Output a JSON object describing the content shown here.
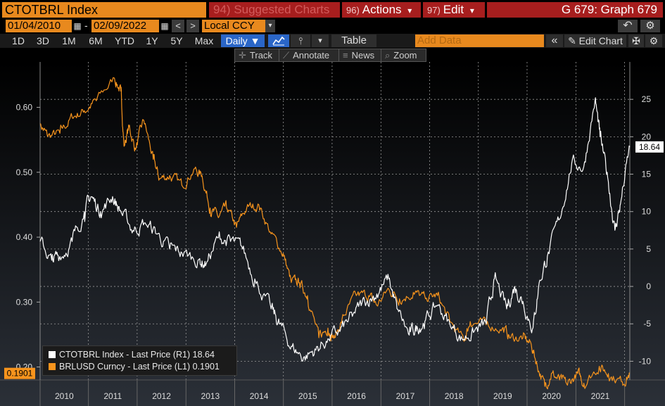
{
  "header": {
    "security": "CTOTBRL Index",
    "suggested": {
      "num": "94)",
      "label": "Suggested Charts"
    },
    "actions": {
      "num": "96)",
      "label": "Actions",
      "caret": "▾"
    },
    "edit": {
      "num": "97)",
      "label": "Edit",
      "caret": "▾"
    },
    "graph_id": "G 679: Graph 679"
  },
  "range": {
    "start_date": "01/04/2010",
    "end_date": "02/09/2022",
    "dash": "-",
    "prev": "<",
    "next": ">",
    "currency": "Local CCY",
    "currency_caret": "▾",
    "undo": "↶",
    "settings": "⚙"
  },
  "periods": [
    "1D",
    "3D",
    "1M",
    "6M",
    "YTD",
    "1Y",
    "5Y",
    "Max"
  ],
  "frequency": "Daily ▼",
  "toolbar": {
    "line_icon": "📈",
    "bar_icon": "⫯",
    "more": "▾",
    "table": "Table",
    "add_data_placeholder": "Add Data",
    "collapse": "«",
    "edit_chart": "✎ Edit Chart",
    "config": "✠"
  },
  "subtoolbar": [
    {
      "icon": "✛",
      "label": "Track"
    },
    {
      "icon": "⟋",
      "label": "Annotate"
    },
    {
      "icon": "≡",
      "label": "News"
    },
    {
      "icon": "⌕",
      "label": "Zoom"
    }
  ],
  "legend": [
    {
      "color": "#ffffff",
      "label": "CTOTBRL Index - Last Price (R1) 18.64"
    },
    {
      "color": "#f7941d",
      "label": "BRLUSD Curncy - Last Price (L1) 0.1901"
    }
  ],
  "chart_data": {
    "type": "line",
    "x_axis": {
      "type": "date",
      "range": [
        "2010-01-04",
        "2022-02-09"
      ],
      "ticks": [
        "2010",
        "2011",
        "2012",
        "2013",
        "2014",
        "2015",
        "2016",
        "2017",
        "2018",
        "2019",
        "2020",
        "2021"
      ]
    },
    "y_left": {
      "range": [
        0.18,
        0.67
      ],
      "ticks": [
        0.2,
        0.3,
        0.4,
        0.5,
        0.6
      ],
      "tick_labels": [
        "0.20",
        "0.30",
        "0.40",
        "0.50",
        "0.60"
      ]
    },
    "y_right": {
      "range": [
        -12.5,
        30
      ],
      "ticks": [
        -10,
        -5,
        0,
        5,
        10,
        15,
        20,
        25
      ],
      "tick_labels": [
        "-10",
        "-5",
        "0",
        "5",
        "10",
        "15",
        "20",
        "25"
      ]
    },
    "last_labels": {
      "left": "0.1901",
      "right": "18.64"
    },
    "grid": true,
    "series": [
      {
        "name": "BRLUSD Curncy - Last Price (L1)",
        "axis": "left",
        "color": "#f7941d",
        "points": [
          [
            "2010-01-04",
            0.575
          ],
          [
            "2010-03-01",
            0.555
          ],
          [
            "2010-06-01",
            0.56
          ],
          [
            "2010-09-01",
            0.585
          ],
          [
            "2010-12-01",
            0.595
          ],
          [
            "2011-03-01",
            0.61
          ],
          [
            "2011-07-15",
            0.645
          ],
          [
            "2011-09-01",
            0.625
          ],
          [
            "2011-09-25",
            0.54
          ],
          [
            "2011-11-01",
            0.57
          ],
          [
            "2011-12-20",
            0.535
          ],
          [
            "2012-02-20",
            0.58
          ],
          [
            "2012-05-01",
            0.52
          ],
          [
            "2012-06-15",
            0.49
          ],
          [
            "2012-09-01",
            0.495
          ],
          [
            "2012-12-01",
            0.48
          ],
          [
            "2013-03-01",
            0.505
          ],
          [
            "2013-05-01",
            0.495
          ],
          [
            "2013-07-01",
            0.445
          ],
          [
            "2013-09-01",
            0.43
          ],
          [
            "2013-11-01",
            0.445
          ],
          [
            "2014-01-15",
            0.415
          ],
          [
            "2014-04-01",
            0.445
          ],
          [
            "2014-07-01",
            0.45
          ],
          [
            "2014-10-01",
            0.405
          ],
          [
            "2014-12-31",
            0.375
          ],
          [
            "2015-03-01",
            0.33
          ],
          [
            "2015-05-01",
            0.33
          ],
          [
            "2015-07-01",
            0.31
          ],
          [
            "2015-09-24",
            0.245
          ],
          [
            "2015-12-01",
            0.26
          ],
          [
            "2016-01-20",
            0.245
          ],
          [
            "2016-04-01",
            0.28
          ],
          [
            "2016-07-01",
            0.31
          ],
          [
            "2016-10-01",
            0.31
          ],
          [
            "2016-12-01",
            0.295
          ],
          [
            "2017-03-01",
            0.32
          ],
          [
            "2017-05-20",
            0.305
          ],
          [
            "2017-09-01",
            0.315
          ],
          [
            "2017-12-01",
            0.305
          ],
          [
            "2018-03-01",
            0.31
          ],
          [
            "2018-06-01",
            0.27
          ],
          [
            "2018-09-14",
            0.24
          ],
          [
            "2018-11-01",
            0.27
          ],
          [
            "2019-03-01",
            0.265
          ],
          [
            "2019-07-01",
            0.26
          ],
          [
            "2019-09-01",
            0.245
          ],
          [
            "2019-12-01",
            0.245
          ],
          [
            "2020-02-01",
            0.235
          ],
          [
            "2020-03-15",
            0.205
          ],
          [
            "2020-05-13",
            0.17
          ],
          [
            "2020-07-01",
            0.19
          ],
          [
            "2020-09-01",
            0.18
          ],
          [
            "2020-10-30",
            0.172
          ],
          [
            "2021-01-15",
            0.19
          ],
          [
            "2021-03-01",
            0.175
          ],
          [
            "2021-06-25",
            0.201
          ],
          [
            "2021-09-01",
            0.19
          ],
          [
            "2021-12-15",
            0.177
          ],
          [
            "2022-02-09",
            0.1901
          ]
        ]
      },
      {
        "name": "CTOTBRL Index - Last Price (R1)",
        "axis": "right",
        "color": "#ffffff",
        "points": [
          [
            "2010-01-04",
            6.0
          ],
          [
            "2010-04-01",
            3.5
          ],
          [
            "2010-06-01",
            4.0
          ],
          [
            "2010-09-01",
            6.0
          ],
          [
            "2010-12-01",
            10.0
          ],
          [
            "2011-01-20",
            12.0
          ],
          [
            "2011-04-01",
            10.0
          ],
          [
            "2011-07-01",
            12.0
          ],
          [
            "2011-09-01",
            10.0
          ],
          [
            "2011-12-01",
            7.5
          ],
          [
            "2012-03-01",
            8.5
          ],
          [
            "2012-06-01",
            7.0
          ],
          [
            "2012-09-01",
            5.0
          ],
          [
            "2012-12-01",
            4.5
          ],
          [
            "2013-04-01",
            3.5
          ],
          [
            "2013-06-01",
            3.0
          ],
          [
            "2013-09-01",
            6.5
          ],
          [
            "2013-12-01",
            6.0
          ],
          [
            "2014-03-01",
            5.0
          ],
          [
            "2014-06-01",
            1.0
          ],
          [
            "2014-10-01",
            -3.0
          ],
          [
            "2014-12-01",
            -5.0
          ],
          [
            "2015-03-01",
            -8.0
          ],
          [
            "2015-06-01",
            -9.5
          ],
          [
            "2015-09-01",
            -8.5
          ],
          [
            "2015-12-01",
            -7.0
          ],
          [
            "2016-03-01",
            -6.0
          ],
          [
            "2016-06-01",
            -4.0
          ],
          [
            "2016-09-01",
            -2.0
          ],
          [
            "2016-12-01",
            -1.0
          ],
          [
            "2017-03-01",
            1.0
          ],
          [
            "2017-05-01",
            -3.0
          ],
          [
            "2017-08-01",
            -6.5
          ],
          [
            "2017-10-01",
            -5.5
          ],
          [
            "2017-12-01",
            -4.5
          ],
          [
            "2018-03-01",
            -2.5
          ],
          [
            "2018-06-01",
            -5.0
          ],
          [
            "2018-09-01",
            -7.0
          ],
          [
            "2018-12-01",
            -6.0
          ],
          [
            "2019-03-01",
            -5.0
          ],
          [
            "2019-05-01",
            1.0
          ],
          [
            "2019-08-01",
            -3.0
          ],
          [
            "2019-10-01",
            0.0
          ],
          [
            "2019-12-01",
            -2.0
          ],
          [
            "2020-02-15",
            -5.5
          ],
          [
            "2020-04-01",
            0.5
          ],
          [
            "2020-06-01",
            4.0
          ],
          [
            "2020-09-01",
            9.0
          ],
          [
            "2020-12-01",
            16.5
          ],
          [
            "2021-03-01",
            16.0
          ],
          [
            "2021-05-25",
            25.0
          ],
          [
            "2021-07-01",
            20.0
          ],
          [
            "2021-09-01",
            14.0
          ],
          [
            "2021-10-20",
            7.5
          ],
          [
            "2021-12-01",
            11.0
          ],
          [
            "2022-02-09",
            18.64
          ]
        ]
      }
    ]
  }
}
